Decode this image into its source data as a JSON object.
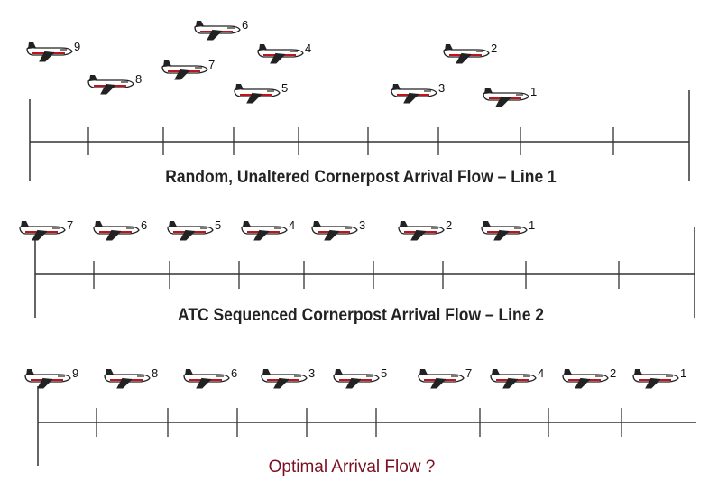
{
  "colors": {
    "line": "#333333",
    "plane_body": "#ffffff",
    "plane_outline": "#222222",
    "plane_stripe": "#c0141c",
    "title_line3": "#7a1020"
  },
  "lines": [
    {
      "title": "Random, Unaltered Cornerpost Arrival Flow – Line 1",
      "planes": [
        "9",
        "8",
        "7",
        "6",
        "4",
        "5",
        "3",
        "2",
        "1"
      ]
    },
    {
      "title": "ATC Sequenced Cornerpost Arrival Flow – Line 2",
      "planes": [
        "7",
        "6",
        "5",
        "4",
        "3",
        "2",
        "1"
      ]
    },
    {
      "title": "Optimal Arrival Flow ?",
      "planes": [
        "9",
        "8",
        "6",
        "3",
        "5",
        "7",
        "4",
        "2",
        "1"
      ]
    }
  ]
}
